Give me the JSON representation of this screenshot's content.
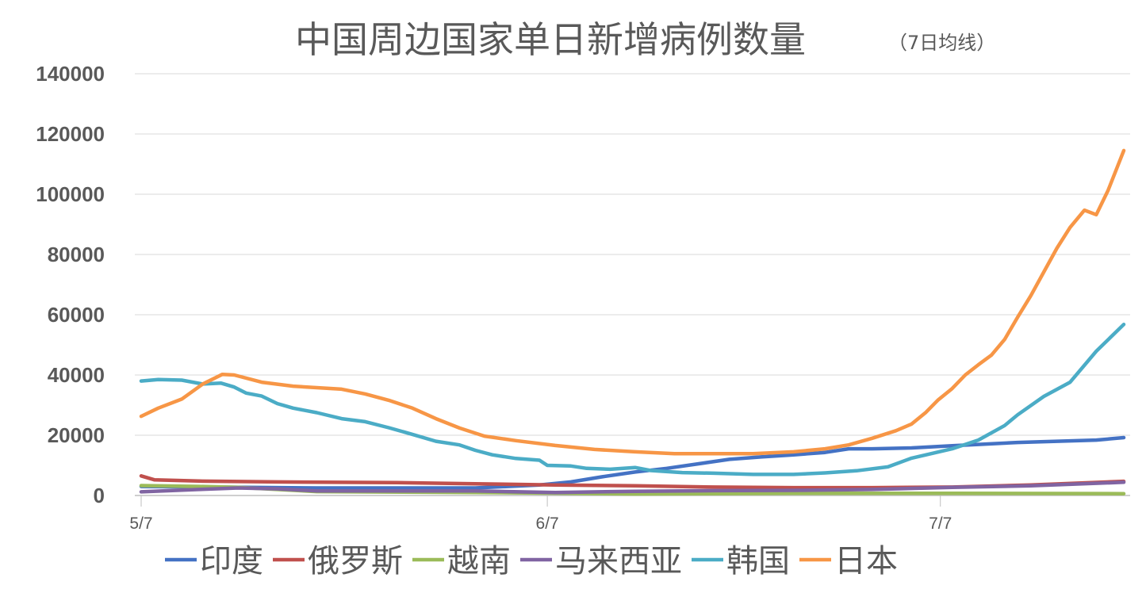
{
  "chart_data": {
    "type": "line",
    "title": "中国周边国家单日新增病例数量",
    "subtitle": "（7日均线）",
    "xlabel": "",
    "ylabel": "",
    "x_unit": "days since 5/7",
    "xlim": [
      0,
      75
    ],
    "ylim": [
      0,
      140000
    ],
    "yticks": [
      0,
      20000,
      40000,
      60000,
      80000,
      100000,
      120000,
      140000
    ],
    "ytick_labels": [
      "0",
      "20000",
      "40000",
      "60000",
      "80000",
      "100000",
      "120000",
      "140000"
    ],
    "xticks": [
      0,
      31,
      61
    ],
    "xtick_labels": [
      "5/7",
      "6/7",
      "7/7"
    ],
    "grid": true,
    "legend_position": "bottom",
    "series": [
      {
        "name": "印度",
        "color": "#4472C4",
        "points": [
          [
            0,
            3000
          ],
          [
            13.4,
            2500
          ],
          [
            25.5,
            2500
          ],
          [
            30.4,
            3500
          ],
          [
            32.8,
            4500
          ],
          [
            35.2,
            6200
          ],
          [
            37.7,
            7800
          ],
          [
            40.1,
            9000
          ],
          [
            42.5,
            10500
          ],
          [
            44.9,
            12000
          ],
          [
            47.3,
            12800
          ],
          [
            49.8,
            13500
          ],
          [
            52.2,
            14300
          ],
          [
            54,
            15500
          ],
          [
            55.8,
            15500
          ],
          [
            58.8,
            15800
          ],
          [
            61.9,
            16500
          ],
          [
            66.9,
            17600
          ],
          [
            72.9,
            18400
          ],
          [
            75,
            19200
          ]
        ]
      },
      {
        "name": "俄罗斯",
        "color": "#C0504D",
        "points": [
          [
            0,
            6500
          ],
          [
            1,
            5200
          ],
          [
            4.4,
            4800
          ],
          [
            10.4,
            4500
          ],
          [
            19.5,
            4300
          ],
          [
            25.5,
            3900
          ],
          [
            31.6,
            3500
          ],
          [
            37.7,
            3200
          ],
          [
            43.7,
            2800
          ],
          [
            49.8,
            2600
          ],
          [
            55.8,
            2600
          ],
          [
            61.9,
            2800
          ],
          [
            67.9,
            3500
          ],
          [
            75,
            4700
          ]
        ]
      },
      {
        "name": "越南",
        "color": "#9BBB59",
        "points": [
          [
            0,
            3300
          ],
          [
            4.4,
            3000
          ],
          [
            7.4,
            2700
          ],
          [
            13.4,
            1300
          ],
          [
            25.5,
            1000
          ],
          [
            37.7,
            500
          ],
          [
            49.8,
            700
          ],
          [
            61.9,
            700
          ],
          [
            75,
            600
          ]
        ]
      },
      {
        "name": "马来西亚",
        "color": "#8064A2",
        "points": [
          [
            0,
            1200
          ],
          [
            4.4,
            2000
          ],
          [
            7.4,
            2500
          ],
          [
            10.4,
            2200
          ],
          [
            13.4,
            1500
          ],
          [
            25.5,
            1500
          ],
          [
            31.6,
            1000
          ],
          [
            37.7,
            1400
          ],
          [
            43.7,
            1600
          ],
          [
            49.8,
            1700
          ],
          [
            55.8,
            2000
          ],
          [
            61.9,
            2700
          ],
          [
            67.9,
            3200
          ],
          [
            75,
            4400
          ]
        ]
      },
      {
        "name": "韩国",
        "color": "#4BACC6",
        "points": [
          [
            0,
            38000
          ],
          [
            1.3,
            38500
          ],
          [
            3.1,
            38300
          ],
          [
            4.7,
            37000
          ],
          [
            6.1,
            37300
          ],
          [
            7.1,
            36000
          ],
          [
            8,
            34000
          ],
          [
            9.2,
            33000
          ],
          [
            10.4,
            30500
          ],
          [
            11.6,
            29000
          ],
          [
            13.4,
            27500
          ],
          [
            15.3,
            25500
          ],
          [
            17.1,
            24500
          ],
          [
            18.9,
            22500
          ],
          [
            20.7,
            20300
          ],
          [
            22.5,
            18000
          ],
          [
            24.3,
            16800
          ],
          [
            25.5,
            15000
          ],
          [
            26.8,
            13500
          ],
          [
            28.6,
            12300
          ],
          [
            30.4,
            11700
          ],
          [
            31,
            10000
          ],
          [
            32.8,
            9800
          ],
          [
            34,
            9000
          ],
          [
            35.8,
            8700
          ],
          [
            37.7,
            9300
          ],
          [
            38.9,
            8300
          ],
          [
            41.3,
            7600
          ],
          [
            43.7,
            7400
          ],
          [
            46.7,
            7000
          ],
          [
            49.8,
            7000
          ],
          [
            52.2,
            7500
          ],
          [
            54.6,
            8200
          ],
          [
            57,
            9500
          ],
          [
            58.8,
            12400
          ],
          [
            61.9,
            15500
          ],
          [
            63.9,
            18400
          ],
          [
            65.9,
            23200
          ],
          [
            66.9,
            26800
          ],
          [
            68.9,
            32900
          ],
          [
            70.9,
            37600
          ],
          [
            72.9,
            47900
          ],
          [
            75,
            56800
          ]
        ]
      },
      {
        "name": "日本",
        "color": "#F79646",
        "points": [
          [
            0,
            26300
          ],
          [
            1.3,
            29000
          ],
          [
            3.1,
            32000
          ],
          [
            4.7,
            37000
          ],
          [
            6.2,
            40200
          ],
          [
            7.1,
            40000
          ],
          [
            9.2,
            37600
          ],
          [
            11.6,
            36300
          ],
          [
            13.4,
            35800
          ],
          [
            15.3,
            35300
          ],
          [
            17.1,
            33700
          ],
          [
            18.9,
            31600
          ],
          [
            20.7,
            29000
          ],
          [
            22.5,
            25500
          ],
          [
            24.3,
            22400
          ],
          [
            26.2,
            19700
          ],
          [
            28.6,
            18200
          ],
          [
            31.6,
            16600
          ],
          [
            34.6,
            15300
          ],
          [
            37.7,
            14500
          ],
          [
            40.7,
            13900
          ],
          [
            46.7,
            13900
          ],
          [
            49.8,
            14500
          ],
          [
            52.2,
            15500
          ],
          [
            54,
            16800
          ],
          [
            55.8,
            19000
          ],
          [
            57.6,
            21500
          ],
          [
            58.8,
            23700
          ],
          [
            59.9,
            27600
          ],
          [
            60.8,
            31600
          ],
          [
            61.9,
            35500
          ],
          [
            62.9,
            40000
          ],
          [
            63.9,
            43400
          ],
          [
            64.9,
            46600
          ],
          [
            65.9,
            51800
          ],
          [
            66.9,
            59200
          ],
          [
            67.9,
            66300
          ],
          [
            68.9,
            74200
          ],
          [
            69.9,
            82100
          ],
          [
            70.9,
            89000
          ],
          [
            72,
            94700
          ],
          [
            72.9,
            93200
          ],
          [
            73.8,
            101300
          ],
          [
            75,
            114500
          ]
        ]
      }
    ]
  }
}
